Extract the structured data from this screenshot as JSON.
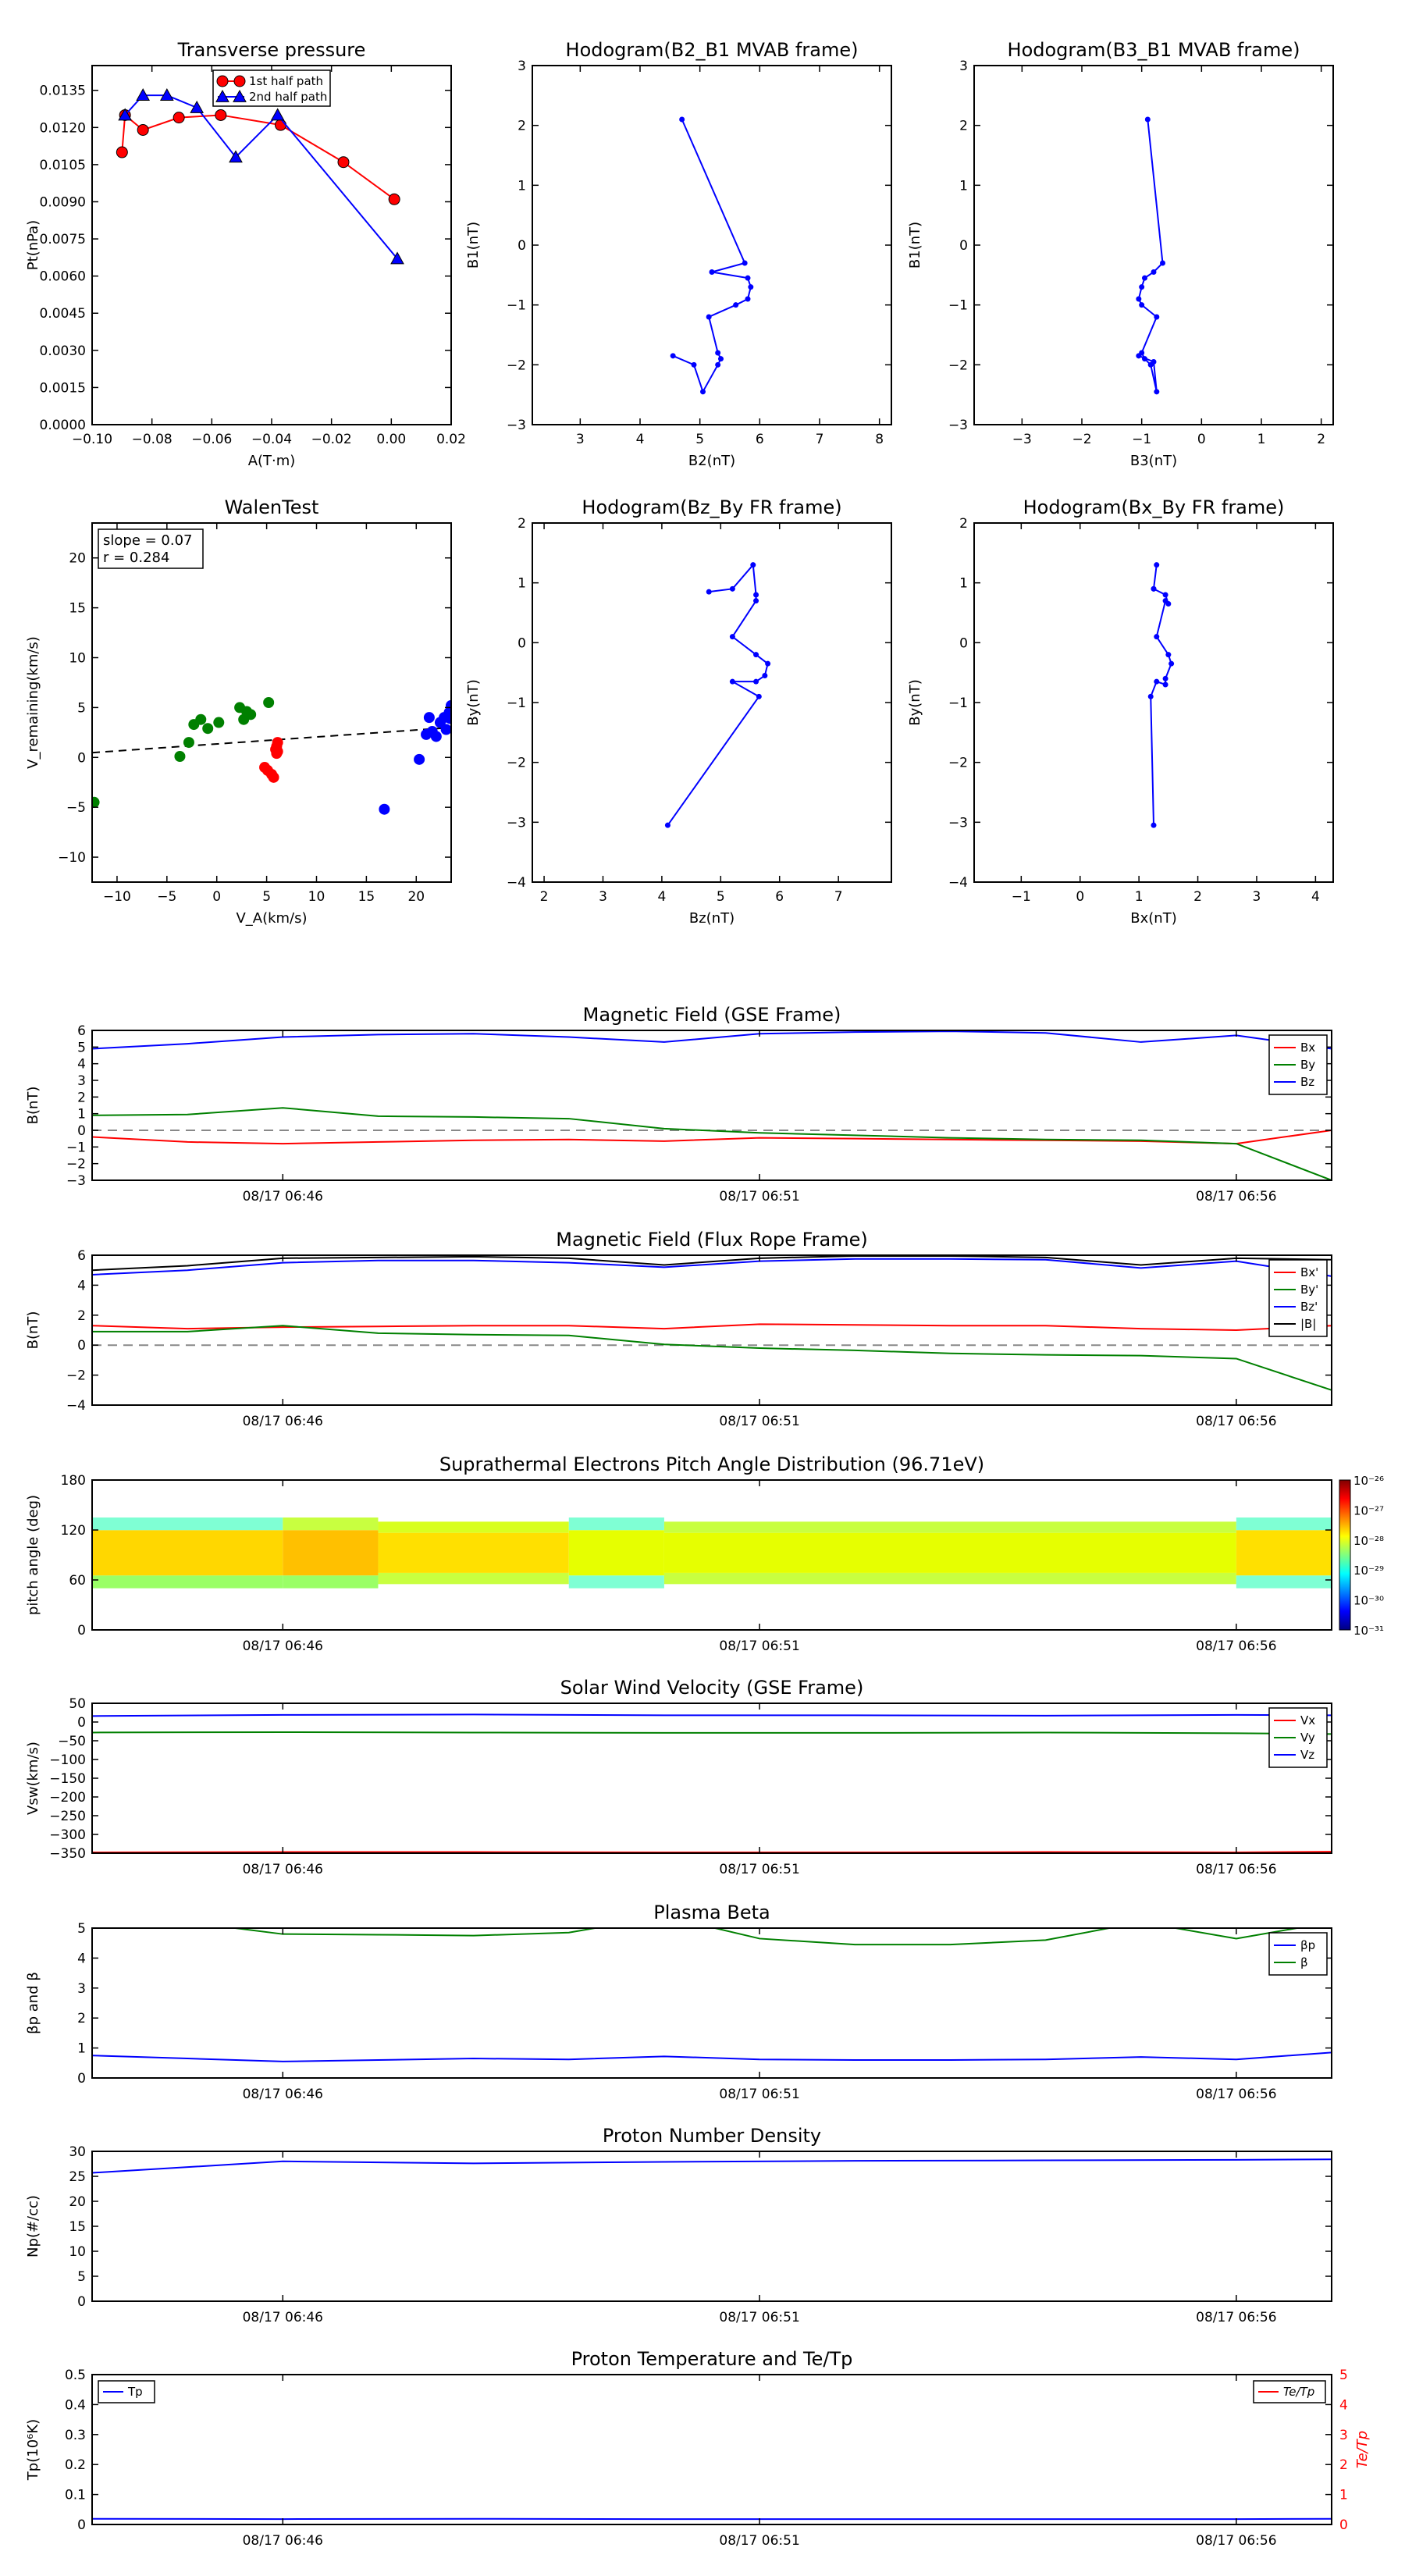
{
  "chart_data": [
    {
      "id": "transverse_pressure",
      "type": "line",
      "title": "Transverse pressure",
      "xlabel": "A(T·m)",
      "ylabel": "Pt(nPa)",
      "xlim": [
        -0.1,
        0.02
      ],
      "ylim": [
        0,
        0.0145
      ],
      "xticks": [
        -0.1,
        -0.08,
        -0.06,
        -0.04,
        -0.02,
        0.0,
        0.02
      ],
      "xtick_labels": [
        "−0.10",
        "−0.08",
        "−0.06",
        "−0.04",
        "−0.02",
        "0.00",
        "0.02"
      ],
      "yticks": [
        0,
        0.0015,
        0.003,
        0.0045,
        0.006,
        0.0075,
        0.009,
        0.0105,
        0.012,
        0.0135
      ],
      "ytick_labels": [
        "0.0000",
        "0.0015",
        "0.0030",
        "0.0045",
        "0.0060",
        "0.0075",
        "0.0090",
        "0.0105",
        "0.0120",
        "0.0135"
      ],
      "legend_position": "top-center",
      "series": [
        {
          "name": "1st half path",
          "color": "#ff0000",
          "marker": "circle",
          "x": [
            -0.09,
            -0.089,
            -0.083,
            -0.071,
            -0.057,
            -0.037,
            -0.016,
            0.001
          ],
          "y": [
            0.011,
            0.0125,
            0.0119,
            0.0124,
            0.0125,
            0.0121,
            0.0106,
            0.0091
          ]
        },
        {
          "name": "2nd half path",
          "color": "#0000ff",
          "marker": "triangle",
          "x": [
            -0.089,
            -0.083,
            -0.075,
            -0.065,
            -0.052,
            -0.038,
            0.002
          ],
          "y": [
            0.0125,
            0.0133,
            0.0133,
            0.0128,
            0.0108,
            0.0125,
            0.0067
          ]
        }
      ]
    },
    {
      "id": "hodogram_b2_b1",
      "type": "line",
      "title": "Hodogram(B2_B1 MVAB frame)",
      "xlabel": "B2(nT)",
      "ylabel": "B1(nT)",
      "xlim": [
        2.2,
        8.2
      ],
      "ylim": [
        -3,
        3
      ],
      "xticks": [
        3,
        4,
        5,
        6,
        7,
        8
      ],
      "yticks": [
        -3,
        -2,
        -1,
        0,
        1,
        2,
        3
      ],
      "series": [
        {
          "color": "#0000ff",
          "marker": "dot",
          "x": [
            4.7,
            5.75,
            5.2,
            5.8,
            5.85,
            5.8,
            5.6,
            5.15,
            5.3,
            5.35,
            5.3,
            5.05,
            4.9,
            4.55
          ],
          "y": [
            2.1,
            -0.3,
            -0.45,
            -0.55,
            -0.7,
            -0.9,
            -1.0,
            -1.2,
            -1.8,
            -1.9,
            -2.0,
            -2.45,
            -2.0,
            -1.85
          ]
        }
      ]
    },
    {
      "id": "hodogram_b3_b1",
      "type": "line",
      "title": "Hodogram(B3_B1 MVAB frame)",
      "xlabel": "B3(nT)",
      "ylabel": "B1(nT)",
      "xlim": [
        -3.8,
        2.2
      ],
      "ylim": [
        -3,
        3
      ],
      "xticks": [
        -3,
        -2,
        -1,
        0,
        1,
        2
      ],
      "yticks": [
        -3,
        -2,
        -1,
        0,
        1,
        2,
        3
      ],
      "series": [
        {
          "color": "#0000ff",
          "marker": "dot",
          "x": [
            -0.9,
            -0.65,
            -0.8,
            -0.95,
            -1.0,
            -1.05,
            -1.0,
            -0.75,
            -1.0,
            -0.95,
            -0.85,
            -0.75,
            -0.8,
            -1.05
          ],
          "y": [
            2.1,
            -0.3,
            -0.45,
            -0.55,
            -0.7,
            -0.9,
            -1.0,
            -1.2,
            -1.8,
            -1.9,
            -2.0,
            -2.45,
            -1.95,
            -1.85
          ]
        }
      ]
    },
    {
      "id": "walen_test",
      "type": "scatter",
      "title": "WalenTest",
      "xlabel": "V_A(km/s)",
      "ylabel": "V_remaining(km/s)",
      "xlim": [
        -12.5,
        23.5
      ],
      "ylim": [
        -12.5,
        23.5
      ],
      "xticks": [
        -10,
        -5,
        0,
        5,
        10,
        15,
        20
      ],
      "yticks": [
        -10,
        -5,
        0,
        5,
        10,
        15,
        20
      ],
      "annotation": [
        "slope = 0.07",
        "r = 0.284"
      ],
      "fit_line": {
        "slope": 0.07,
        "intercept": 1.35,
        "style": "dashed"
      },
      "series": [
        {
          "color": "#008000",
          "x": [
            -12.3,
            -3.7,
            -2.8,
            -2.3,
            -1.6,
            -0.9,
            0.2,
            2.3,
            2.7,
            3.0,
            3.4,
            5.2
          ],
          "y": [
            -4.5,
            0.1,
            1.5,
            3.3,
            3.8,
            2.9,
            3.5,
            5.0,
            3.8,
            4.6,
            4.3,
            5.5
          ]
        },
        {
          "color": "#ff0000",
          "x": [
            4.8,
            5.1,
            5.5,
            5.7,
            5.9,
            6.0,
            6.1,
            6.1,
            6.0
          ],
          "y": [
            -1.0,
            -1.3,
            -1.7,
            -2.0,
            0.8,
            1.1,
            1.5,
            0.6,
            0.4
          ]
        },
        {
          "color": "#0000ff",
          "x": [
            16.8,
            20.3,
            21.0,
            21.3,
            21.6,
            22.0,
            22.4,
            22.8,
            23.0,
            23.3,
            23.4,
            23.5
          ],
          "y": [
            -5.2,
            -0.2,
            2.3,
            4.0,
            2.6,
            2.1,
            3.5,
            4.0,
            2.8,
            4.5,
            3.9,
            5.2
          ]
        }
      ]
    },
    {
      "id": "hodogram_bz_by",
      "type": "line",
      "title": "Hodogram(Bz_By FR frame)",
      "xlabel": "Bz(nT)",
      "ylabel": "By(nT)",
      "xlim": [
        1.8,
        7.9
      ],
      "ylim": [
        -4,
        2
      ],
      "xticks": [
        2,
        3,
        4,
        5,
        6,
        7
      ],
      "yticks": [
        -4,
        -3,
        -2,
        -1,
        0,
        1,
        2
      ],
      "series": [
        {
          "color": "#0000ff",
          "marker": "dot",
          "x": [
            4.8,
            5.2,
            5.55,
            5.6,
            5.6,
            5.2,
            5.6,
            5.8,
            5.75,
            5.6,
            5.2,
            5.65,
            4.1
          ],
          "y": [
            0.85,
            0.9,
            1.3,
            0.8,
            0.7,
            0.1,
            -0.2,
            -0.35,
            -0.55,
            -0.65,
            -0.65,
            -0.9,
            -3.05
          ]
        }
      ]
    },
    {
      "id": "hodogram_bx_by",
      "type": "line",
      "title": "Hodogram(Bx_By FR frame)",
      "xlabel": "Bx(nT)",
      "ylabel": "By(nT)",
      "xlim": [
        -1.8,
        4.3
      ],
      "ylim": [
        -4,
        2
      ],
      "xticks": [
        -1,
        0,
        1,
        2,
        3,
        4
      ],
      "yticks": [
        -4,
        -3,
        -2,
        -1,
        0,
        1,
        2
      ],
      "series": [
        {
          "color": "#0000ff",
          "marker": "dot",
          "x": [
            1.25,
            1.3,
            1.25,
            1.45,
            1.5,
            1.45,
            1.3,
            1.5,
            1.55,
            1.45,
            1.45,
            1.3,
            1.2,
            1.25
          ],
          "y": [
            0.9,
            1.3,
            0.9,
            0.8,
            0.65,
            0.7,
            0.1,
            -0.2,
            -0.35,
            -0.6,
            -0.7,
            -0.65,
            -0.9,
            -3.05
          ]
        }
      ]
    },
    {
      "id": "magnetic_field_gse",
      "type": "line",
      "title": "Magnetic Field (GSE Frame)",
      "xlabel": "",
      "ylabel": "B(nT)",
      "ylim": [
        -3,
        6
      ],
      "yticks": [
        -3,
        -2,
        -1,
        0,
        1,
        2,
        3,
        4,
        5,
        6
      ],
      "time_ticks": [
        "08/17 06:46",
        "08/17 06:51",
        "08/17 06:56"
      ],
      "x_minutes": [
        0,
        2,
        4,
        6,
        8,
        10,
        12,
        14,
        16,
        18,
        20,
        22,
        24,
        26
      ],
      "xlim_minutes": [
        0,
        26
      ],
      "time_tick_minutes": [
        4,
        14,
        24
      ],
      "zero_line": true,
      "legend_position": "right",
      "series": [
        {
          "name": "Bx",
          "color": "#ff0000",
          "values": [
            -0.4,
            -0.7,
            -0.8,
            -0.7,
            -0.6,
            -0.55,
            -0.65,
            -0.45,
            -0.5,
            -0.55,
            -0.6,
            -0.65,
            -0.8,
            0.0
          ]
        },
        {
          "name": "By",
          "color": "#008000",
          "values": [
            0.9,
            0.95,
            1.35,
            0.85,
            0.8,
            0.7,
            0.1,
            -0.15,
            -0.3,
            -0.45,
            -0.55,
            -0.6,
            -0.8,
            -3.0
          ]
        },
        {
          "name": "Bz",
          "color": "#0000ff",
          "values": [
            4.9,
            5.2,
            5.6,
            5.75,
            5.8,
            5.6,
            5.3,
            5.8,
            5.9,
            5.95,
            5.85,
            5.3,
            5.7,
            4.9
          ]
        }
      ]
    },
    {
      "id": "magnetic_field_fr",
      "type": "line",
      "title": "Magnetic Field (Flux Rope Frame)",
      "xlabel": "",
      "ylabel": "B(nT)",
      "ylim": [
        -4,
        6
      ],
      "yticks": [
        -4,
        -2,
        0,
        2,
        4,
        6
      ],
      "time_ticks": [
        "08/17 06:46",
        "08/17 06:51",
        "08/17 06:56"
      ],
      "x_minutes": [
        0,
        2,
        4,
        6,
        8,
        10,
        12,
        14,
        16,
        18,
        20,
        22,
        24,
        26
      ],
      "xlim_minutes": [
        0,
        26
      ],
      "time_tick_minutes": [
        4,
        14,
        24
      ],
      "zero_line": true,
      "legend_position": "right",
      "series": [
        {
          "name": "Bx'",
          "color": "#ff0000",
          "values": [
            1.3,
            1.1,
            1.2,
            1.25,
            1.3,
            1.3,
            1.1,
            1.4,
            1.35,
            1.3,
            1.3,
            1.1,
            1.0,
            1.3
          ]
        },
        {
          "name": "By'",
          "color": "#008000",
          "values": [
            0.9,
            0.9,
            1.3,
            0.8,
            0.7,
            0.65,
            0.05,
            -0.2,
            -0.35,
            -0.55,
            -0.65,
            -0.7,
            -0.9,
            -3.0
          ]
        },
        {
          "name": "Bz'",
          "color": "#0000ff",
          "values": [
            4.7,
            5.0,
            5.5,
            5.65,
            5.65,
            5.5,
            5.2,
            5.6,
            5.75,
            5.75,
            5.7,
            5.15,
            5.6,
            4.6
          ]
        },
        {
          "name": "|B|",
          "color": "#000000",
          "values": [
            5.0,
            5.3,
            5.8,
            5.85,
            5.9,
            5.8,
            5.35,
            5.8,
            5.95,
            5.95,
            5.85,
            5.35,
            5.8,
            5.7
          ]
        }
      ]
    },
    {
      "id": "suprathermal_pad",
      "type": "heatmap",
      "title": "Suprathermal Electrons Pitch Angle Distribution (96.71eV)",
      "ylabel": "pitch angle (deg)",
      "ylim": [
        0,
        180
      ],
      "yticks": [
        0,
        60,
        120,
        180
      ],
      "time_ticks": [
        "08/17 06:46",
        "08/17 06:51",
        "08/17 06:56"
      ],
      "xlim_minutes": [
        0,
        26
      ],
      "time_tick_minutes": [
        4,
        14,
        24
      ],
      "colorbar_ticks": [
        "10⁻²⁶",
        "10⁻²⁷",
        "10⁻²⁸",
        "10⁻²⁹",
        "10⁻³⁰",
        "10⁻³¹"
      ],
      "colorbar_colors": [
        "#800000",
        "#ff0000",
        "#ff8000",
        "#ffff00",
        "#80ff80",
        "#00ffff",
        "#0080ff",
        "#0000ff",
        "#000080"
      ],
      "blocks": [
        {
          "x0": 0,
          "x1": 4,
          "y0": 50,
          "y1": 135,
          "top": "#7fffd4",
          "mid": "#ffd700",
          "bottom": "#9aff66"
        },
        {
          "x0": 4,
          "x1": 6,
          "y0": 50,
          "y1": 135,
          "top": "#c8ff40",
          "mid": "#ffc000",
          "bottom": "#9aff66"
        },
        {
          "x0": 6,
          "x1": 10,
          "y0": 55,
          "y1": 130,
          "top": "#d8ff20",
          "mid": "#ffe000",
          "bottom": "#c8ff40"
        },
        {
          "x0": 10,
          "x1": 12,
          "y0": 50,
          "y1": 135,
          "top": "#7fffd4",
          "mid": "#e6ff00",
          "bottom": "#7fffd4"
        },
        {
          "x0": 12,
          "x1": 24,
          "y0": 55,
          "y1": 130,
          "top": "#c8ff40",
          "mid": "#e6ff00",
          "bottom": "#c8ff40"
        },
        {
          "x0": 24,
          "x1": 26,
          "y0": 50,
          "y1": 135,
          "top": "#7fffd4",
          "mid": "#ffe000",
          "bottom": "#7fffd4"
        }
      ]
    },
    {
      "id": "solar_wind_velocity",
      "type": "line",
      "title": "Solar Wind Velocity (GSE Frame)",
      "ylabel": "Vsw(km/s)",
      "ylim": [
        -350,
        50
      ],
      "yticks": [
        -350,
        -300,
        -250,
        -200,
        -150,
        -100,
        -50,
        0,
        50
      ],
      "time_ticks": [
        "08/17 06:46",
        "08/17 06:51",
        "08/17 06:56"
      ],
      "x_minutes": [
        0,
        4,
        8,
        12,
        16,
        20,
        24,
        26
      ],
      "xlim_minutes": [
        0,
        26
      ],
      "time_tick_minutes": [
        4,
        14,
        24
      ],
      "legend_position": "right",
      "series": [
        {
          "name": "Vx",
          "color": "#ff0000",
          "values": [
            -348,
            -347,
            -347,
            -348,
            -348,
            -347,
            -348,
            -346
          ]
        },
        {
          "name": "Vy",
          "color": "#008000",
          "values": [
            -28,
            -27,
            -28,
            -29,
            -29,
            -28,
            -30,
            -32
          ]
        },
        {
          "name": "Vz",
          "color": "#0000ff",
          "values": [
            16,
            19,
            20,
            18,
            18,
            17,
            19,
            18
          ]
        }
      ]
    },
    {
      "id": "plasma_beta",
      "type": "line",
      "title": "Plasma Beta",
      "ylabel": "βp and β",
      "ylim": [
        0,
        5
      ],
      "yticks": [
        0,
        1,
        2,
        3,
        4,
        5
      ],
      "time_ticks": [
        "08/17 06:46",
        "08/17 06:51",
        "08/17 06:56"
      ],
      "x_minutes": [
        0,
        2,
        4,
        6,
        8,
        10,
        12,
        14,
        16,
        18,
        20,
        22,
        24,
        26
      ],
      "xlim_minutes": [
        0,
        26
      ],
      "time_tick_minutes": [
        4,
        14,
        24
      ],
      "legend_position": "right",
      "series": [
        {
          "name": "βp",
          "color": "#0000ff",
          "values": [
            0.75,
            0.65,
            0.55,
            0.6,
            0.65,
            0.62,
            0.72,
            0.62,
            0.6,
            0.6,
            0.62,
            0.7,
            0.62,
            0.85
          ]
        },
        {
          "name": "β",
          "color": "#008000",
          "values": [
            5.4,
            5.2,
            4.8,
            4.78,
            4.75,
            4.85,
            5.4,
            4.65,
            4.45,
            4.45,
            4.6,
            5.2,
            4.65,
            5.2
          ]
        }
      ]
    },
    {
      "id": "proton_number_density",
      "type": "line",
      "title": "Proton Number Density",
      "ylabel": "Np(#/cc)",
      "ylim": [
        0,
        30
      ],
      "yticks": [
        0,
        5,
        10,
        15,
        20,
        25,
        30
      ],
      "time_ticks": [
        "08/17 06:46",
        "08/17 06:51",
        "08/17 06:56"
      ],
      "x_minutes": [
        0,
        4,
        8,
        12,
        16,
        20,
        24,
        26
      ],
      "xlim_minutes": [
        0,
        26
      ],
      "time_tick_minutes": [
        4,
        14,
        24
      ],
      "series": [
        {
          "color": "#0000ff",
          "values": [
            25.7,
            28.0,
            27.6,
            27.9,
            28.1,
            28.2,
            28.3,
            28.4
          ]
        }
      ]
    },
    {
      "id": "proton_temperature",
      "type": "line",
      "title": "Proton Temperature and Te/Tp",
      "ylabel": "Tp(10⁶K)",
      "ylabel_right": "Te/Tp",
      "ylim": [
        0,
        0.5
      ],
      "yticks": [
        0,
        0.1,
        0.2,
        0.3,
        0.4,
        0.5
      ],
      "ylim_right": [
        0,
        5
      ],
      "yticks_right": [
        0,
        1,
        2,
        3,
        4,
        5
      ],
      "time_ticks": [
        "08/17 06:46",
        "08/17 06:51",
        "08/17 06:56"
      ],
      "x_minutes": [
        0,
        4,
        8,
        12,
        16,
        20,
        24,
        26
      ],
      "xlim_minutes": [
        0,
        26
      ],
      "time_tick_minutes": [
        4,
        14,
        24
      ],
      "series": [
        {
          "name": "Tp",
          "color": "#0000ff",
          "values": [
            0.019,
            0.018,
            0.019,
            0.018,
            0.018,
            0.018,
            0.018,
            0.019
          ]
        },
        {
          "name": "Te/Tp",
          "color": "#ff0000",
          "values": [],
          "legend_position": "top-right"
        }
      ]
    }
  ]
}
